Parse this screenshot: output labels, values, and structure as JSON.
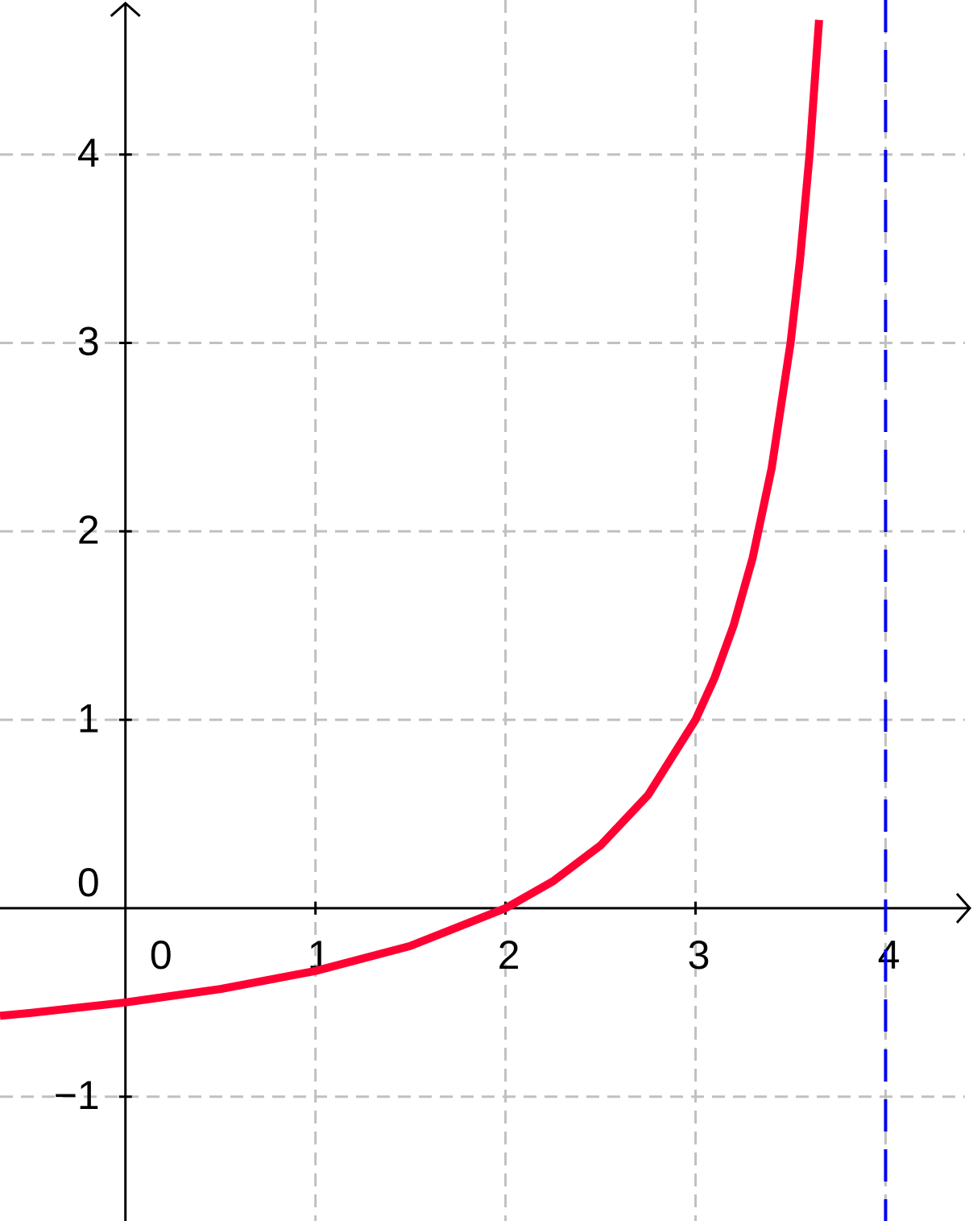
{
  "chart_data": {
    "type": "line",
    "x": [
      -0.66,
      -0.5,
      0,
      0.5,
      1,
      1.5,
      2,
      2.25,
      2.5,
      2.75,
      3,
      3.1,
      3.2,
      3.3,
      3.4,
      3.5,
      3.55,
      3.6,
      3.65
    ],
    "series": [
      {
        "color": "#ff0033",
        "values": [
          -0.571,
          -0.556,
          -0.5,
          -0.429,
          -0.333,
          -0.2,
          0,
          0.143,
          0.333,
          0.6,
          1,
          1.222,
          1.5,
          1.857,
          2.333,
          3,
          3.444,
          4,
          4.714
        ]
      }
    ],
    "xlim": [
      -0.66,
      4.46
    ],
    "ylim": [
      -1.66,
      4.82
    ],
    "xticks": [
      0,
      1,
      2,
      3,
      4
    ],
    "yticks": [
      {
        "value": -1,
        "label": "−1"
      },
      0,
      1,
      2,
      3,
      4
    ],
    "grid": true,
    "asymptote": {
      "x": 4,
      "color": "#0000ee"
    }
  }
}
